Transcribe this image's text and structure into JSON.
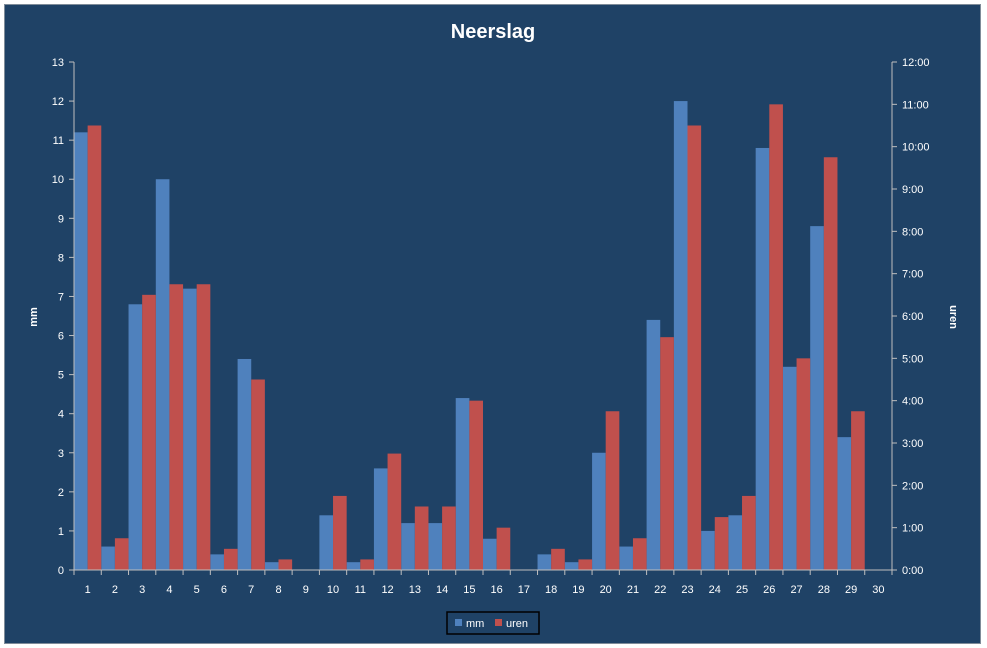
{
  "chart_data": {
    "type": "bar",
    "title": "Neerslag",
    "categories": [
      "1",
      "2",
      "3",
      "4",
      "5",
      "6",
      "7",
      "8",
      "9",
      "10",
      "11",
      "12",
      "13",
      "14",
      "15",
      "16",
      "17",
      "18",
      "19",
      "20",
      "21",
      "22",
      "23",
      "24",
      "25",
      "26",
      "27",
      "28",
      "29",
      "30"
    ],
    "series": [
      {
        "name": "mm",
        "axis": "left",
        "color": "#4f81bd",
        "values": [
          11.2,
          0.6,
          6.8,
          10.0,
          7.2,
          0.4,
          5.4,
          0.2,
          0,
          1.4,
          0.2,
          2.6,
          1.2,
          1.2,
          4.4,
          0.8,
          0,
          0.4,
          0.2,
          3.0,
          0.6,
          6.4,
          12.0,
          1.0,
          1.4,
          10.8,
          5.2,
          8.8,
          3.4,
          0
        ]
      },
      {
        "name": "uren",
        "axis": "right",
        "color": "#c0504d",
        "values": [
          10.5,
          0.75,
          6.5,
          6.75,
          6.75,
          0.5,
          4.5,
          0.25,
          0,
          1.75,
          0.25,
          2.75,
          1.5,
          1.5,
          4.0,
          1.0,
          0,
          0.5,
          0.25,
          3.75,
          0.75,
          5.5,
          10.5,
          1.25,
          1.75,
          11.0,
          5.0,
          9.75,
          3.75,
          0
        ]
      }
    ],
    "ylabel_left": "mm",
    "ylabel_right": "uren",
    "ylim_left": [
      0,
      13
    ],
    "yticks_left": [
      "0",
      "1",
      "2",
      "3",
      "4",
      "5",
      "6",
      "7",
      "8",
      "9",
      "10",
      "11",
      "12",
      "13"
    ],
    "ylim_right": [
      0,
      12
    ],
    "yticks_right": [
      "0:00",
      "1:00",
      "2:00",
      "3:00",
      "4:00",
      "5:00",
      "6:00",
      "7:00",
      "8:00",
      "9:00",
      "10:00",
      "11:00",
      "12:00"
    ],
    "grid": false,
    "legend_position": "bottom",
    "colors": {
      "background": "#1f4266",
      "text": "#ffffff",
      "axis": "#bfbfbf"
    }
  }
}
